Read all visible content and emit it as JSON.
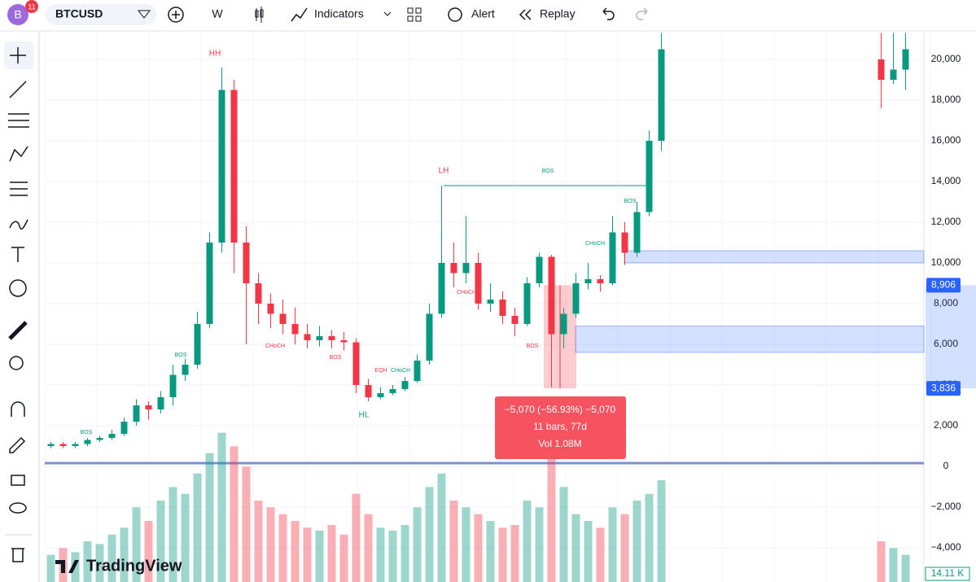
{
  "toolbar": {
    "avatar": "B",
    "badge": "11",
    "symbol": "BTCUSD",
    "interval": "W",
    "indicators": "Indicators",
    "alert": "Alert",
    "replay": "Replay"
  },
  "chart_data": {
    "type": "candlestick",
    "up_color": "#089981",
    "down_color": "#f23645",
    "open": [
      1000,
      1100,
      1000,
      1100,
      1300,
      1400,
      1600,
      2200,
      3000,
      2800,
      3400,
      4500,
      5000,
      7000,
      11000,
      18500,
      11000,
      9000,
      8000,
      7500,
      7000,
      6500,
      6200,
      6400,
      6200,
      6100,
      4000,
      3400,
      3600,
      3800,
      4200,
      5200,
      7500,
      10000,
      9500,
      10000,
      8000,
      8200,
      7400,
      7000,
      9000,
      10300,
      6500,
      7500,
      9000,
      9200,
      9000,
      11500,
      10500,
      12500,
      16000,
      null,
      null,
      null,
      null,
      null,
      null,
      null,
      null,
      null,
      null,
      null,
      null,
      null,
      null,
      null,
      null,
      null,
      20000,
      19000,
      19500
    ],
    "high": [
      1200,
      1200,
      1200,
      1400,
      1500,
      1800,
      2400,
      3300,
      3200,
      3700,
      5000,
      5300,
      7600,
      11500,
      19600,
      19000,
      11800,
      9500,
      8500,
      8200,
      7800,
      7000,
      6900,
      6700,
      6600,
      6300,
      4300,
      3900,
      4000,
      4400,
      5500,
      8000,
      13800,
      11000,
      12300,
      10500,
      9000,
      8600,
      7800,
      9300,
      10500,
      10400,
      7800,
      9500,
      10000,
      9400,
      12300,
      12000,
      13000,
      16500,
      21300,
      null,
      null,
      null,
      null,
      null,
      null,
      null,
      null,
      null,
      null,
      null,
      null,
      null,
      null,
      null,
      null,
      null,
      21300,
      21300,
      21300
    ],
    "low": [
      900,
      900,
      900,
      1000,
      1200,
      1300,
      1500,
      2000,
      2300,
      2600,
      3000,
      4200,
      4800,
      6800,
      10500,
      9500,
      6000,
      7000,
      6800,
      6500,
      6000,
      5800,
      5900,
      5800,
      5700,
      3600,
      3200,
      3300,
      3500,
      3700,
      4100,
      5000,
      7300,
      8800,
      9000,
      7700,
      7600,
      7000,
      6400,
      6900,
      8800,
      3900,
      5800,
      7300,
      8700,
      8600,
      8900,
      9900,
      10300,
      12300,
      15500,
      null,
      null,
      null,
      null,
      null,
      null,
      null,
      null,
      null,
      null,
      null,
      null,
      null,
      null,
      null,
      null,
      null,
      17600,
      18800,
      18500
    ],
    "close": [
      1100,
      1000,
      1100,
      1300,
      1400,
      1600,
      2200,
      3000,
      2800,
      3400,
      4500,
      5000,
      7000,
      11000,
      18500,
      11000,
      9000,
      8000,
      7500,
      7000,
      6500,
      6200,
      6400,
      6200,
      6100,
      4000,
      3400,
      3600,
      3800,
      4200,
      5200,
      7500,
      10000,
      9500,
      10000,
      8000,
      8200,
      7400,
      7000,
      9000,
      10300,
      6500,
      7500,
      9000,
      9200,
      9000,
      11500,
      10500,
      12500,
      16000,
      20500,
      null,
      null,
      null,
      null,
      null,
      null,
      null,
      null,
      null,
      null,
      null,
      null,
      null,
      null,
      null,
      null,
      null,
      19000,
      19500,
      20500
    ],
    "volume": [
      20,
      25,
      22,
      30,
      28,
      35,
      40,
      55,
      45,
      60,
      70,
      65,
      80,
      95,
      110,
      100,
      85,
      60,
      55,
      50,
      45,
      40,
      38,
      42,
      35,
      65,
      50,
      40,
      38,
      42,
      55,
      70,
      80,
      60,
      55,
      50,
      45,
      40,
      42,
      60,
      55,
      95,
      70,
      50,
      45,
      40,
      55,
      50,
      60,
      65,
      75,
      null,
      null,
      null,
      null,
      null,
      null,
      null,
      null,
      null,
      null,
      null,
      null,
      null,
      null,
      null,
      null,
      null,
      30,
      25,
      20
    ],
    "vlim": [
      0,
      120
    ],
    "last_volume_label": "14.11 K",
    "ylim": [
      -5680,
      21320
    ],
    "yticks": [
      {
        "value": -4000,
        "label": "−4,000"
      },
      {
        "value": -2000,
        "label": "−2,000"
      },
      0,
      {
        "value": 2000,
        "label": "2,000"
      },
      {
        "value": 4000,
        "label": "4,000"
      },
      {
        "value": 6000,
        "label": "6,000"
      },
      {
        "value": 8000,
        "label": "8,000"
      },
      {
        "value": 10000,
        "label": "10,000"
      },
      {
        "value": 12000,
        "label": "12,000"
      },
      {
        "value": 14000,
        "label": "14,000"
      },
      {
        "value": 16000,
        "label": "16,000"
      },
      {
        "value": 18000,
        "label": "18,000"
      },
      {
        "value": 20000,
        "label": "20,000"
      }
    ],
    "price_labels": [
      {
        "value": 8906,
        "label": "8,906"
      },
      {
        "value": 3836,
        "label": "3,836"
      }
    ],
    "zones": [
      {
        "from": 10000,
        "to": 10600
      },
      {
        "from": 5600,
        "to": 6900
      }
    ],
    "structure_lines": [
      {
        "value": 13800,
        "color": "#089981"
      }
    ],
    "measure": {
      "from": 8906,
      "to": 3836,
      "lines": [
        "−5,070 (−56.93%) −5,070",
        "11 bars, 77d",
        "Vol 1.08M"
      ]
    },
    "annotations": [
      {
        "text": "HH",
        "color": "#f23645"
      },
      {
        "text": "LH",
        "color": "#f23645"
      },
      {
        "text": "BOS",
        "color": "#089981"
      },
      {
        "text": "BOS",
        "color": "#089981"
      },
      {
        "text": "BOS",
        "color": "#089981"
      },
      {
        "text": "CHoCH",
        "color": "#f23645"
      },
      {
        "text": "BOS",
        "color": "#f23645"
      },
      {
        "text": "EQH",
        "color": "#f23645"
      },
      {
        "text": "CHoCH",
        "color": "#089981"
      },
      {
        "text": "HL",
        "color": "#089981"
      },
      {
        "text": "CHoCH",
        "color": "#f23645"
      },
      {
        "text": "BOS",
        "color": "#f23645"
      },
      {
        "text": "CHoCH",
        "color": "#089981"
      },
      {
        "text": "BOS",
        "color": "#089981"
      }
    ],
    "logo": "TradingView"
  }
}
